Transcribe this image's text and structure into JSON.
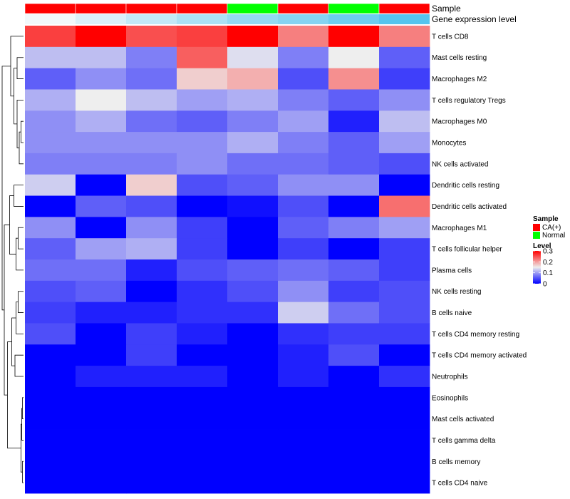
{
  "chart_data": {
    "type": "heatmap",
    "title": "",
    "annotation_rows": [
      "Sample",
      "Gene expression level"
    ],
    "sample_groups": [
      "CA(+)",
      "CA(+)",
      "CA(+)",
      "CA(+)",
      "Normal",
      "CA(+)",
      "Normal",
      "CA(+)"
    ],
    "group_colors": {
      "CA(+)": "#ff0000",
      "Normal": "#00ff00"
    },
    "gene_expression_level": [
      0.0,
      0.15,
      0.3,
      0.45,
      0.6,
      0.7,
      0.85,
      1.0
    ],
    "gene_expression_colors": {
      "low": "#f2f8fb",
      "high": "#56c5ee"
    },
    "rows": [
      "T cells CD8",
      "Mast cells resting",
      "Macrophages M2",
      "T cells regulatory  Tregs",
      "Macrophages M0",
      "Monocytes",
      "NK cells activated",
      "Dendritic cells resting",
      "Dendritic cells activated",
      "Macrophages M1",
      "T cells follicular helper",
      "Plasma cells",
      "NK cells resting",
      "B cells naive",
      "T cells CD4 memory resting",
      "T cells CD4 memory activated",
      "Neutrophils",
      "Eosinophils",
      "Mast cells activated",
      "T cells gamma delta",
      "B cells memory",
      "T cells CD4 naive"
    ],
    "values": [
      [
        0.26,
        0.3,
        0.25,
        0.26,
        0.3,
        0.22,
        0.3,
        0.22
      ],
      [
        0.12,
        0.12,
        0.08,
        0.24,
        0.14,
        0.08,
        0.15,
        0.06
      ],
      [
        0.06,
        0.09,
        0.07,
        0.17,
        0.19,
        0.05,
        0.21,
        0.04
      ],
      [
        0.11,
        0.15,
        0.12,
        0.1,
        0.11,
        0.08,
        0.06,
        0.09
      ],
      [
        0.09,
        0.11,
        0.07,
        0.06,
        0.08,
        0.1,
        0.02,
        0.12
      ],
      [
        0.09,
        0.09,
        0.09,
        0.09,
        0.11,
        0.08,
        0.06,
        0.1
      ],
      [
        0.08,
        0.08,
        0.08,
        0.09,
        0.07,
        0.07,
        0.06,
        0.05
      ],
      [
        0.13,
        0.0,
        0.17,
        0.05,
        0.06,
        0.09,
        0.09,
        0.0
      ],
      [
        0.0,
        0.06,
        0.05,
        0.0,
        0.01,
        0.05,
        0.0,
        0.23
      ],
      [
        0.09,
        0.0,
        0.09,
        0.04,
        0.0,
        0.06,
        0.08,
        0.1
      ],
      [
        0.06,
        0.1,
        0.11,
        0.04,
        0.0,
        0.04,
        0.0,
        0.04
      ],
      [
        0.07,
        0.07,
        0.02,
        0.05,
        0.06,
        0.07,
        0.06,
        0.04
      ],
      [
        0.05,
        0.06,
        0.0,
        0.03,
        0.05,
        0.09,
        0.04,
        0.05
      ],
      [
        0.04,
        0.02,
        0.02,
        0.03,
        0.03,
        0.13,
        0.07,
        0.05
      ],
      [
        0.05,
        0.0,
        0.04,
        0.02,
        0.0,
        0.03,
        0.04,
        0.04
      ],
      [
        0.0,
        0.0,
        0.04,
        0.0,
        0.0,
        0.02,
        0.05,
        0.0
      ],
      [
        0.0,
        0.02,
        0.02,
        0.02,
        0.0,
        0.02,
        0.0,
        0.03
      ],
      [
        0.0,
        0.0,
        0.0,
        0.0,
        0.0,
        0.0,
        0.0,
        0.0
      ],
      [
        0.0,
        0.0,
        0.0,
        0.0,
        0.0,
        0.0,
        0.0,
        0.0
      ],
      [
        0.0,
        0.0,
        0.0,
        0.0,
        0.0,
        0.0,
        0.0,
        0.0
      ],
      [
        0.0,
        0.0,
        0.0,
        0.0,
        0.0,
        0.0,
        0.0,
        0.0
      ],
      [
        0.0,
        0.0,
        0.0,
        0.0,
        0.0,
        0.0,
        0.0,
        0.0
      ]
    ],
    "color_scale": {
      "min": 0,
      "max": 0.3,
      "stops": [
        {
          "value": 0,
          "color": "#0000ff"
        },
        {
          "value": 0.15,
          "color": "#eeeeee"
        },
        {
          "value": 0.3,
          "color": "#ff0000"
        }
      ]
    },
    "row_order": [
      0,
      1,
      2,
      3,
      4,
      5,
      6,
      7,
      8,
      9,
      10,
      11,
      12,
      13,
      14,
      15,
      16,
      17,
      18,
      19,
      20,
      21
    ],
    "row_dendrogram": {
      "merges": [
        [
          1,
          2,
          0.3
        ],
        [
          4,
          5,
          0.12
        ],
        [
          -2,
          6,
          0.2
        ],
        [
          3,
          -3,
          0.3
        ],
        [
          -1,
          -4,
          0.45
        ],
        [
          0,
          -5,
          0.6
        ],
        [
          9,
          10,
          0.25
        ],
        [
          -7,
          11,
          0.35
        ],
        [
          7,
          8,
          0.45
        ],
        [
          -8,
          -9,
          0.65
        ],
        [
          12,
          13,
          0.25
        ],
        [
          -11,
          14,
          0.35
        ],
        [
          15,
          16,
          0.4
        ],
        [
          -12,
          -13,
          0.55
        ],
        [
          17,
          18,
          0.05
        ],
        [
          -15,
          19,
          0.08
        ],
        [
          20,
          21,
          0.05
        ],
        [
          -16,
          -17,
          0.12
        ],
        [
          -14,
          -18,
          0.75
        ],
        [
          -10,
          -19,
          0.9
        ],
        [
          -6,
          -20,
          1.0
        ]
      ]
    },
    "legend": {
      "sample_title": "Sample",
      "sample_entries": [
        {
          "label": "CA(+)",
          "color": "#ff0000"
        },
        {
          "label": "Normal",
          "color": "#00ff00"
        }
      ],
      "level_title": "Level",
      "level_ticks": [
        0.3,
        0.2,
        0.1,
        0
      ],
      "level_tick_labels": [
        "0.3",
        "0.2",
        "0.1",
        "0"
      ]
    }
  }
}
